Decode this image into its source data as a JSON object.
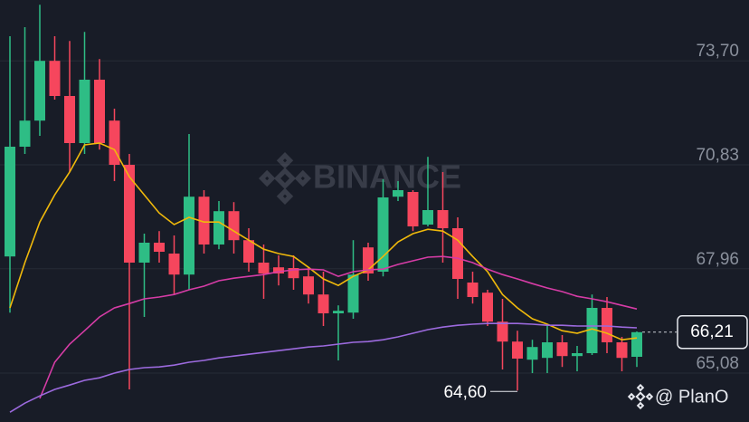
{
  "chart_data": {
    "type": "candlestick",
    "watermark": "BINANCE",
    "credit": "@ PlanO",
    "ylim": [
      63.73,
      75.38
    ],
    "yticks": [
      {
        "value": 73.7,
        "label": "73,70"
      },
      {
        "value": 70.83,
        "label": "70,83"
      },
      {
        "value": 67.96,
        "label": "67,96"
      },
      {
        "value": 65.08,
        "label": "65,08"
      }
    ],
    "grid": true,
    "up_color": "#2ebd85",
    "down_color": "#f6465d",
    "candles": {
      "open": [
        68.3,
        71.33,
        72.05,
        73.7,
        72.73,
        71.43,
        73.18,
        72.05,
        70.83,
        68.13,
        68.68,
        68.38,
        67.8,
        69.95,
        68.63,
        69.55,
        68.75,
        68.13,
        68.0,
        67.98,
        67.75,
        67.25,
        66.73,
        66.75,
        68.55,
        67.88,
        69.95,
        70.08,
        69.18,
        69.58,
        69.08,
        67.58,
        67.3,
        66.5,
        65.95,
        65.45,
        65.5,
        65.93,
        65.55,
        65.63,
        66.88,
        65.93,
        65.53
      ],
      "high": [
        74.38,
        74.63,
        75.25,
        74.38,
        74.25,
        74.5,
        73.75,
        72.38,
        71.13,
        68.93,
        69.0,
        68.88,
        71.68,
        70.13,
        69.83,
        69.8,
        69.08,
        68.63,
        68.33,
        68.33,
        68.0,
        67.88,
        66.95,
        68.75,
        68.68,
        70.43,
        70.38,
        70.13,
        71.05,
        70.63,
        69.38,
        67.88,
        67.38,
        67.13,
        66.25,
        66.0,
        66.38,
        66.13,
        65.83,
        67.25,
        67.18,
        66.08,
        66.23
      ],
      "low": [
        66.75,
        71.13,
        71.63,
        72.63,
        70.63,
        71.13,
        71.25,
        70.38,
        64.63,
        66.63,
        68.13,
        67.25,
        67.38,
        68.38,
        68.5,
        68.38,
        67.88,
        67.13,
        67.5,
        67.38,
        67.0,
        66.38,
        65.43,
        66.58,
        67.63,
        67.75,
        69.83,
        69.0,
        69.13,
        68.13,
        67.13,
        67.0,
        66.38,
        65.18,
        64.6,
        65.08,
        65.08,
        65.25,
        65.13,
        65.58,
        65.63,
        65.13,
        65.25
      ],
      "close": [
        71.33,
        72.05,
        73.7,
        72.73,
        71.43,
        73.18,
        71.43,
        70.83,
        68.13,
        68.68,
        68.43,
        67.8,
        69.95,
        68.63,
        69.55,
        68.75,
        68.13,
        67.83,
        67.83,
        67.7,
        67.25,
        66.73,
        66.8,
        67.8,
        67.83,
        69.93,
        70.13,
        69.13,
        69.58,
        69.08,
        67.68,
        67.18,
        66.5,
        65.95,
        65.48,
        65.8,
        65.93,
        65.55,
        65.63,
        66.88,
        65.93,
        65.5,
        66.21
      ]
    },
    "series": [
      {
        "color": "#f0b90b",
        "values": [
          66.88,
          68.13,
          69.25,
          70.0,
          70.63,
          71.38,
          71.43,
          71.25,
          70.5,
          70.0,
          69.5,
          69.18,
          69.38,
          69.25,
          69.25,
          69.0,
          68.75,
          68.5,
          68.38,
          68.3,
          68.0,
          67.68,
          67.5,
          67.75,
          67.93,
          68.3,
          68.7,
          68.93,
          69.05,
          69.0,
          68.75,
          68.3,
          67.88,
          67.25,
          66.88,
          66.58,
          66.43,
          66.25,
          66.18,
          66.3,
          66.18,
          66.0,
          66.05
        ]
      },
      {
        "color": "#d63ca6",
        "values": [
          null,
          null,
          64.38,
          65.38,
          65.88,
          66.25,
          66.63,
          66.88,
          67.0,
          67.13,
          67.18,
          67.25,
          67.38,
          67.48,
          67.63,
          67.7,
          67.75,
          67.8,
          67.88,
          67.93,
          67.95,
          67.93,
          67.75,
          67.88,
          67.93,
          67.95,
          68.08,
          68.18,
          68.28,
          68.3,
          68.25,
          68.13,
          67.95,
          67.8,
          67.68,
          67.55,
          67.43,
          67.33,
          67.2,
          67.13,
          67.05,
          66.95,
          66.85
        ]
      },
      {
        "color": "#9c6ade",
        "values": [
          64.0,
          64.25,
          64.45,
          64.63,
          64.75,
          64.88,
          64.95,
          65.08,
          65.18,
          65.23,
          65.25,
          65.3,
          65.38,
          65.43,
          65.5,
          65.55,
          65.6,
          65.65,
          65.7,
          65.75,
          65.8,
          65.83,
          65.88,
          65.93,
          65.95,
          66.0,
          66.08,
          66.18,
          66.28,
          66.35,
          66.4,
          66.43,
          66.45,
          66.45,
          66.45,
          66.43,
          66.4,
          66.4,
          66.38,
          66.38,
          66.38,
          66.35,
          66.33
        ]
      }
    ],
    "low_label": {
      "value": 64.6,
      "label": "64,60"
    },
    "last_price": {
      "value": 66.21,
      "label": "66,21"
    }
  }
}
